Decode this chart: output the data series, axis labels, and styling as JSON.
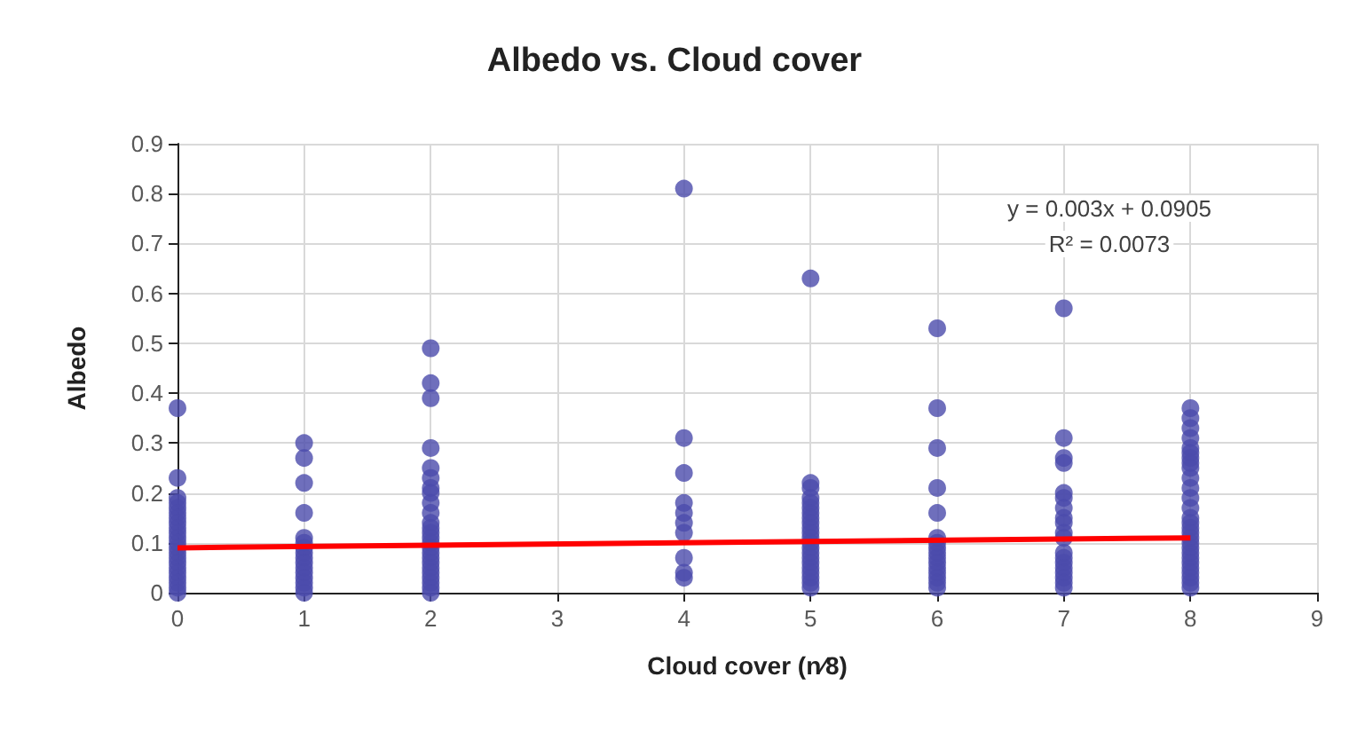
{
  "chart_data": {
    "type": "scatter",
    "title": "Albedo vs. Cloud cover",
    "xlabel": "Cloud cover (n⁄8)",
    "ylabel": "Albedo",
    "xlim": [
      0,
      9
    ],
    "xticks": [
      0,
      1,
      2,
      3,
      4,
      5,
      6,
      7,
      8,
      9
    ],
    "ylim": [
      0,
      0.9
    ],
    "yticks": [
      0,
      0.1,
      0.2,
      0.3,
      0.4,
      0.5,
      0.6,
      0.7,
      0.8,
      0.9
    ],
    "grid": true,
    "annotations": [
      "y = 0.003x + 0.0905",
      "R² = 0.0073"
    ],
    "series": [
      {
        "color": "#4b4bab",
        "marker": "circle",
        "x": [
          0,
          0,
          0,
          0,
          0,
          0,
          0,
          0,
          0,
          0,
          0,
          0,
          0,
          0,
          0,
          0,
          0,
          0,
          0,
          0,
          0,
          0,
          1,
          1,
          1,
          1,
          1,
          1,
          1,
          1,
          1,
          1,
          1,
          1,
          1,
          1,
          1,
          1,
          2,
          2,
          2,
          2,
          2,
          2,
          2,
          2,
          2,
          2,
          2,
          2,
          2,
          2,
          2,
          2,
          2,
          2,
          2,
          2,
          2,
          2,
          2,
          2,
          2,
          4,
          4,
          4,
          4,
          4,
          4,
          4,
          4,
          4,
          4,
          5,
          5,
          5,
          5,
          5,
          5,
          5,
          5,
          5,
          5,
          5,
          5,
          5,
          5,
          5,
          5,
          5,
          5,
          5,
          5,
          5,
          5,
          6,
          6,
          6,
          6,
          6,
          6,
          6,
          6,
          6,
          6,
          6,
          6,
          6,
          6,
          6,
          6,
          7,
          7,
          7,
          7,
          7,
          7,
          7,
          7,
          7,
          7,
          7,
          7,
          7,
          7,
          7,
          7,
          7,
          7,
          7,
          8,
          8,
          8,
          8,
          8,
          8,
          8,
          8,
          8,
          8,
          8,
          8,
          8,
          8,
          8,
          8,
          8,
          8,
          8,
          8,
          8,
          8,
          8,
          8,
          8,
          8,
          8,
          8
        ],
        "values": [
          0.37,
          0.23,
          0.19,
          0.18,
          0.17,
          0.16,
          0.15,
          0.14,
          0.13,
          0.12,
          0.11,
          0.1,
          0.09,
          0.08,
          0.07,
          0.06,
          0.05,
          0.04,
          0.03,
          0.02,
          0.01,
          0,
          0.3,
          0.27,
          0.22,
          0.16,
          0.11,
          0.1,
          0.09,
          0.08,
          0.07,
          0.06,
          0.05,
          0.04,
          0.03,
          0.02,
          0.01,
          0,
          0.49,
          0.42,
          0.39,
          0.29,
          0.25,
          0.23,
          0.21,
          0.2,
          0.18,
          0.16,
          0.14,
          0.13,
          0.12,
          0.11,
          0.1,
          0.09,
          0.08,
          0.07,
          0.06,
          0.05,
          0.04,
          0.03,
          0.02,
          0.01,
          0,
          0.81,
          0.31,
          0.24,
          0.18,
          0.16,
          0.14,
          0.12,
          0.07,
          0.04,
          0.03,
          0.63,
          0.22,
          0.21,
          0.19,
          0.18,
          0.17,
          0.16,
          0.15,
          0.14,
          0.13,
          0.12,
          0.11,
          0.1,
          0.09,
          0.08,
          0.07,
          0.06,
          0.05,
          0.04,
          0.03,
          0.02,
          0.01,
          0.53,
          0.37,
          0.29,
          0.21,
          0.16,
          0.11,
          0.1,
          0.09,
          0.08,
          0.07,
          0.06,
          0.05,
          0.04,
          0.03,
          0.02,
          0.01,
          0.57,
          0.31,
          0.27,
          0.26,
          0.2,
          0.19,
          0.17,
          0.15,
          0.14,
          0.12,
          0.11,
          0.08,
          0.07,
          0.06,
          0.05,
          0.04,
          0.03,
          0.02,
          0.01,
          0.37,
          0.35,
          0.33,
          0.31,
          0.29,
          0.28,
          0.27,
          0.26,
          0.25,
          0.23,
          0.21,
          0.19,
          0.17,
          0.15,
          0.14,
          0.13,
          0.12,
          0.11,
          0.1,
          0.09,
          0.08,
          0.07,
          0.06,
          0.05,
          0.04,
          0.03,
          0.02,
          0.01
        ]
      },
      {
        "type": "line",
        "color": "#ff0000",
        "line_style": "solid",
        "x": [
          0,
          8
        ],
        "values": [
          0.09,
          0.11
        ]
      }
    ]
  }
}
